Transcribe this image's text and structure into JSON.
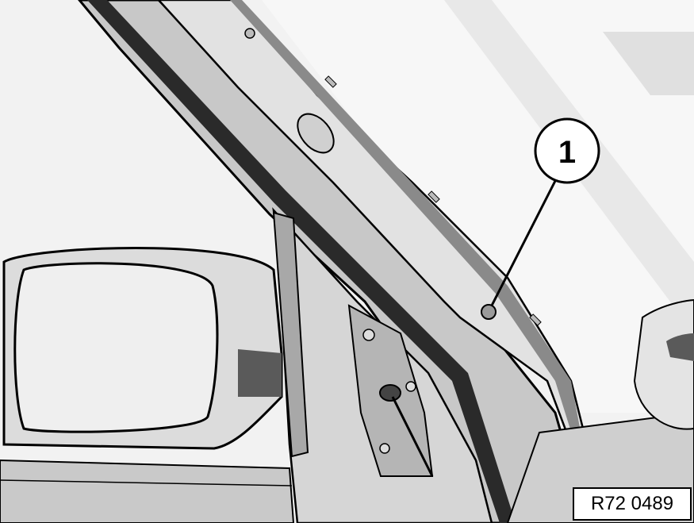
{
  "callouts": [
    {
      "label": "1",
      "target": "a-pillar-trim-clip"
    }
  ],
  "reference_code": "R72 0489",
  "colors": {
    "background": "#f2f2f2",
    "line": "#000000",
    "panel_light": "#e6e6e6",
    "panel_mid": "#c8c8c8",
    "panel_dark": "#9a9a9a",
    "panel_darkest": "#5a5a5a"
  }
}
